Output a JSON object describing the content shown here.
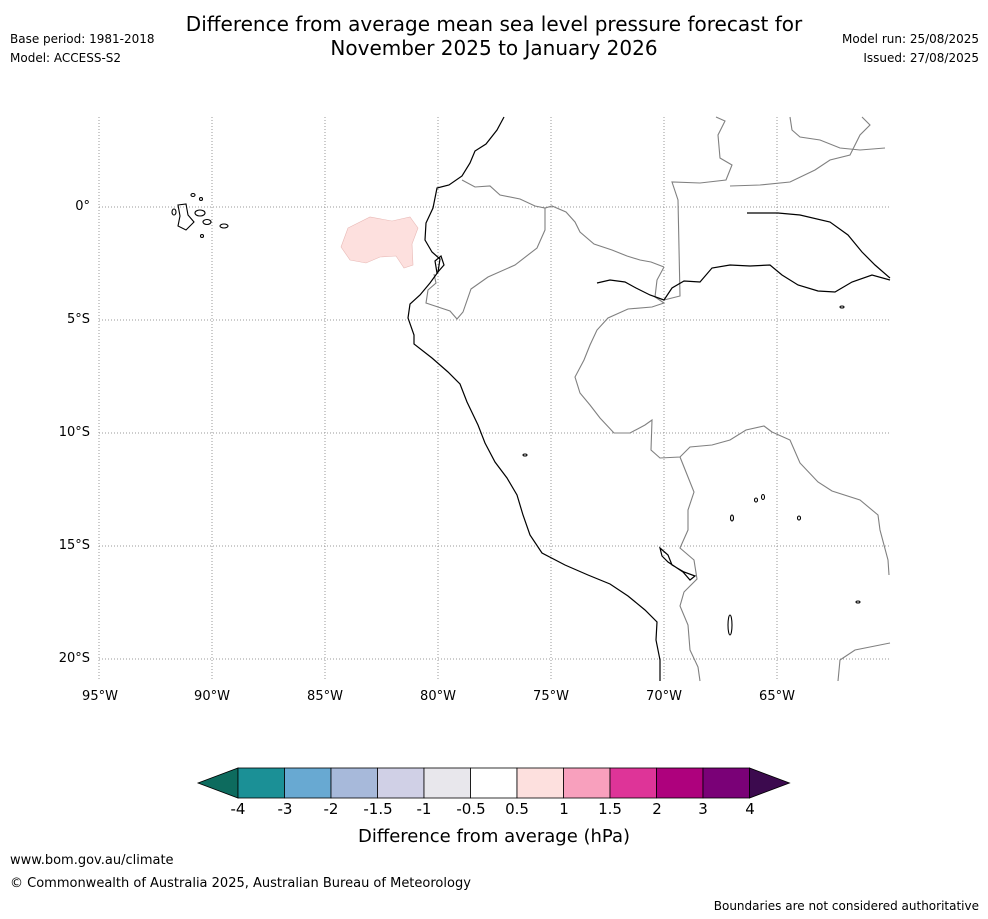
{
  "header": {
    "title_line1": "Difference from average mean sea level pressure forecast for",
    "title_line2": "November 2025 to January 2026",
    "base_period": "Base period: 1981-2018",
    "model": "Model: ACCESS-S2",
    "model_run": "Model run: 25/08/2025",
    "issued": "Issued: 27/08/2025"
  },
  "map": {
    "lat_labels": [
      "0°",
      "5°S",
      "10°S",
      "15°S",
      "20°S"
    ],
    "lon_labels": [
      "95°W",
      "90°W",
      "85°W",
      "80°W",
      "75°W",
      "70°W",
      "65°W"
    ],
    "anomaly_patch": {
      "category": "0.5 to 1",
      "color": "#fde0de"
    },
    "coastline_color": "#000000",
    "border_color": "#808080"
  },
  "colorbar": {
    "title": "Difference from average (hPa)",
    "ticks": [
      "-4",
      "-3",
      "-2",
      "-1.5",
      "-1",
      "-0.5",
      "0.5",
      "1",
      "1.5",
      "2",
      "3",
      "4"
    ],
    "under_color": "#0d6b5e",
    "over_color": "#3c0a4e",
    "colors": [
      "#1b9096",
      "#68a9d2",
      "#a7b9da",
      "#d0d0e6",
      "#e8e7ec",
      "#ffffff",
      "#fde0de",
      "#f8a0bd",
      "#de3498",
      "#ae017d",
      "#7a0177"
    ]
  },
  "footer": {
    "url": "www.bom.gov.au/climate",
    "copyright": "© Commonwealth of Australia 2025, Australian Bureau of Meteorology",
    "disclaimer": "Boundaries are not considered authoritative"
  }
}
